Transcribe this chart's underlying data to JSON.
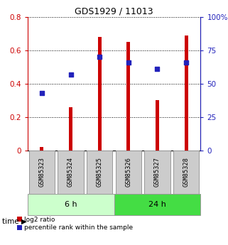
{
  "title": "GDS1929 / 11013",
  "samples": [
    "GSM85323",
    "GSM85324",
    "GSM85325",
    "GSM85326",
    "GSM85327",
    "GSM85328"
  ],
  "log2_ratio": [
    0.02,
    0.26,
    0.68,
    0.65,
    0.3,
    0.69
  ],
  "percentile_rank": [
    43,
    57,
    70,
    66,
    61,
    66
  ],
  "groups": [
    {
      "label": "6 h",
      "indices": [
        0,
        1,
        2
      ],
      "color": "#ccffcc"
    },
    {
      "label": "24 h",
      "indices": [
        3,
        4,
        5
      ],
      "color": "#44dd44"
    }
  ],
  "left_ylim": [
    0,
    0.8
  ],
  "right_ylim": [
    0,
    100
  ],
  "left_yticks": [
    0.0,
    0.2,
    0.4,
    0.6,
    0.8
  ],
  "left_yticklabels": [
    "0",
    "0.2",
    "0.4",
    "0.6",
    "0.8"
  ],
  "right_yticks": [
    0,
    25,
    50,
    75,
    100
  ],
  "right_yticklabels": [
    "0",
    "25",
    "50",
    "75",
    "100%"
  ],
  "left_color": "#cc0000",
  "right_color": "#2222bb",
  "bar_color": "#cc0000",
  "dot_color": "#2222bb",
  "bar_width": 0.12,
  "dot_size": 25,
  "grid_color": "#000000",
  "sample_box_color": "#cccccc",
  "sample_box_edge": "#999999",
  "legend_items": [
    "log2 ratio",
    "percentile rank within the sample"
  ],
  "time_label": "time",
  "fig_width": 3.21,
  "fig_height": 3.45,
  "dpi": 100
}
